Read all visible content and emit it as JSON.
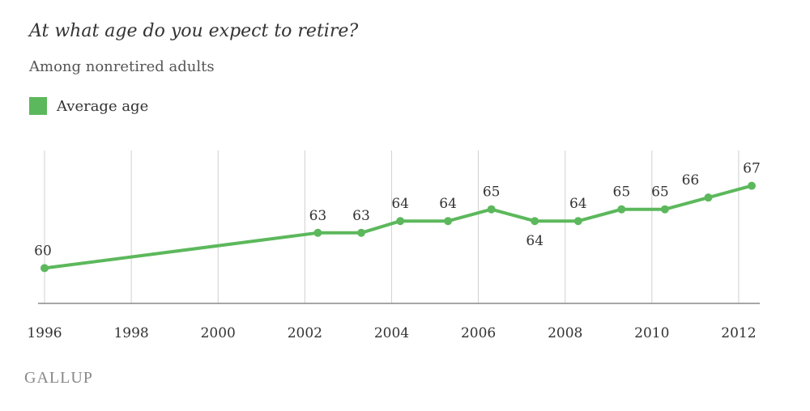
{
  "title": "At what age do you expect to retire?",
  "subtitle": "Among nonretired adults",
  "brand": "GALLUP",
  "colors": {
    "line": "#5cb85c",
    "grid": "#d0d0d0",
    "axis": "#8a8a8a",
    "text": "#333333"
  },
  "chart_data": {
    "type": "line",
    "title": "At what age do you expect to retire?",
    "subtitle": "Among nonretired adults",
    "legend": {
      "entries": [
        "Average age"
      ],
      "position": "top-left"
    },
    "series": [
      {
        "name": "Average age",
        "color": "#5cb85c",
        "points": [
          {
            "x": 1996.0,
            "y": 60,
            "label": "60"
          },
          {
            "x": 2002.3,
            "y": 63,
            "label": "63"
          },
          {
            "x": 2003.3,
            "y": 63,
            "label": "63"
          },
          {
            "x": 2004.2,
            "y": 64,
            "label": "64"
          },
          {
            "x": 2005.3,
            "y": 64,
            "label": "64"
          },
          {
            "x": 2006.3,
            "y": 65,
            "label": "65"
          },
          {
            "x": 2007.3,
            "y": 64,
            "label": "64"
          },
          {
            "x": 2008.3,
            "y": 64,
            "label": "64"
          },
          {
            "x": 2009.3,
            "y": 65,
            "label": "65"
          },
          {
            "x": 2010.3,
            "y": 65,
            "label": "65"
          },
          {
            "x": 2011.3,
            "y": 66,
            "label": "66"
          },
          {
            "x": 2012.3,
            "y": 67,
            "label": "67"
          }
        ]
      }
    ],
    "x_ticks": [
      "1996",
      "1998",
      "2000",
      "2002",
      "2004",
      "2006",
      "2008",
      "2010",
      "2012"
    ],
    "xlim": [
      1996,
      2012.3
    ],
    "ylim": [
      57,
      70
    ],
    "grid": true,
    "xlabel": "",
    "ylabel": ""
  }
}
